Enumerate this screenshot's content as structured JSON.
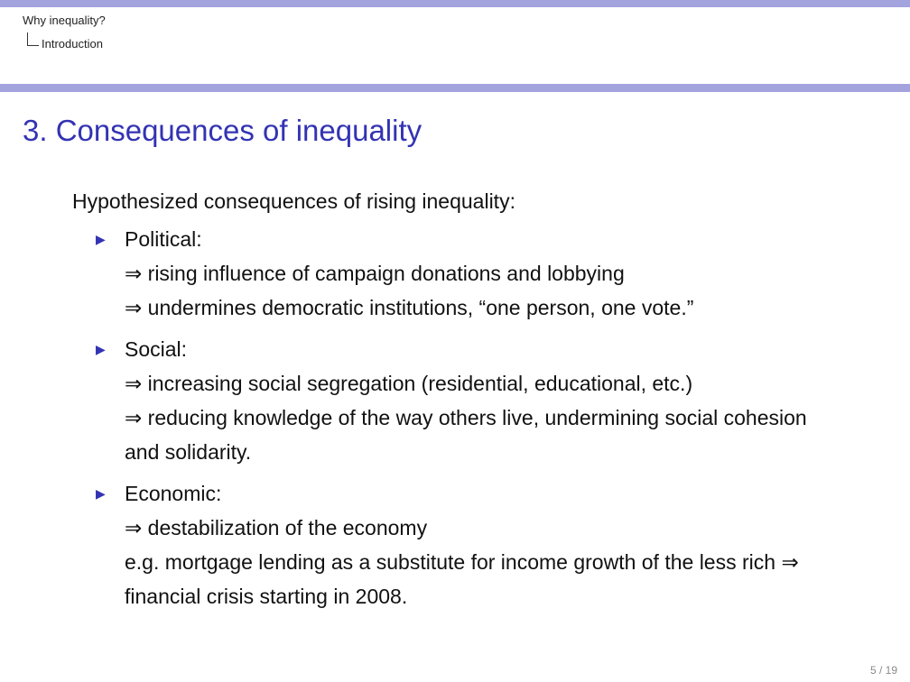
{
  "header": {
    "section": "Why inequality?",
    "subsection": "Introduction"
  },
  "frame": {
    "title": "3. Consequences of inequality"
  },
  "content": {
    "intro": "Hypothesized consequences of rising inequality:",
    "bullets": [
      {
        "heading": "Political:",
        "lines": [
          "⇒ rising influence of campaign donations and lobbying",
          "⇒ undermines democratic institutions, “one person, one vote.”"
        ]
      },
      {
        "heading": "Social:",
        "lines": [
          "⇒ increasing social segregation (residential, educational, etc.)",
          "⇒ reducing knowledge of the way others live, undermining social cohesion and solidarity."
        ]
      },
      {
        "heading": "Economic:",
        "lines": [
          "⇒ destabilization of the economy",
          "e.g. mortgage lending as a substitute for income growth of the less rich ⇒ financial crisis starting in 2008."
        ]
      }
    ]
  },
  "footer": {
    "page_number": "5 / 19"
  },
  "colors": {
    "accent_bar": "#a3a3de",
    "title": "#3333b3",
    "bullet_marker": "#3333b3"
  },
  "icons": {
    "bullet": "triangle-right-icon"
  }
}
